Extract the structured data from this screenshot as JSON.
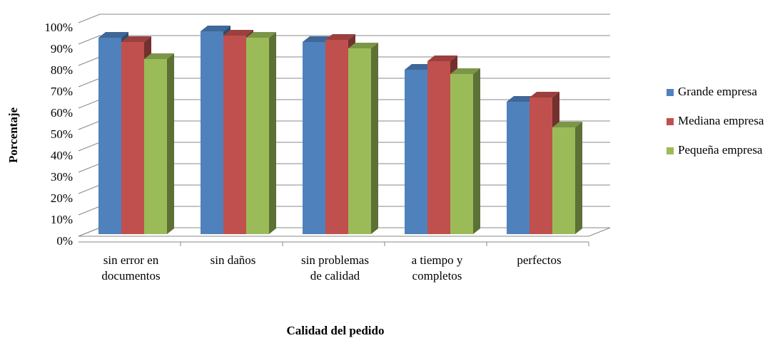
{
  "chart_data": {
    "type": "bar3d",
    "x_label": "Calidad del pedido",
    "y_label": "Porcentaje",
    "categories": [
      [
        "sin error en",
        "documentos"
      ],
      [
        "sin daños"
      ],
      [
        "sin problemas",
        "de calidad"
      ],
      [
        "a tiempo y",
        "completos"
      ],
      [
        "perfectos"
      ]
    ],
    "series": [
      {
        "name": "Grande empresa",
        "color": "#4f81bd",
        "values": [
          93,
          96,
          91,
          78,
          63
        ]
      },
      {
        "name": "Mediana empresa",
        "color": "#c0504d",
        "values": [
          91,
          94,
          92,
          82,
          65
        ]
      },
      {
        "name": "Pequeña empresa",
        "color": "#9bbb59",
        "values": [
          83,
          93,
          88,
          76,
          51
        ]
      }
    ],
    "ylim": [
      0,
      100
    ],
    "yticks": [
      {
        "value": 0,
        "label": "0%"
      },
      {
        "value": 10,
        "label": "10%"
      },
      {
        "value": 20,
        "label": "20%"
      },
      {
        "value": 30,
        "label": "30%"
      },
      {
        "value": 40,
        "label": "40%"
      },
      {
        "value": 50,
        "label": "50%"
      },
      {
        "value": 60,
        "label": "60%"
      },
      {
        "value": 70,
        "label": "70%"
      },
      {
        "value": 80,
        "label": "80%"
      },
      {
        "value": 90,
        "label": "90%"
      },
      {
        "value": 100,
        "label": "100%"
      }
    ],
    "grid": true,
    "legend": "right"
  }
}
